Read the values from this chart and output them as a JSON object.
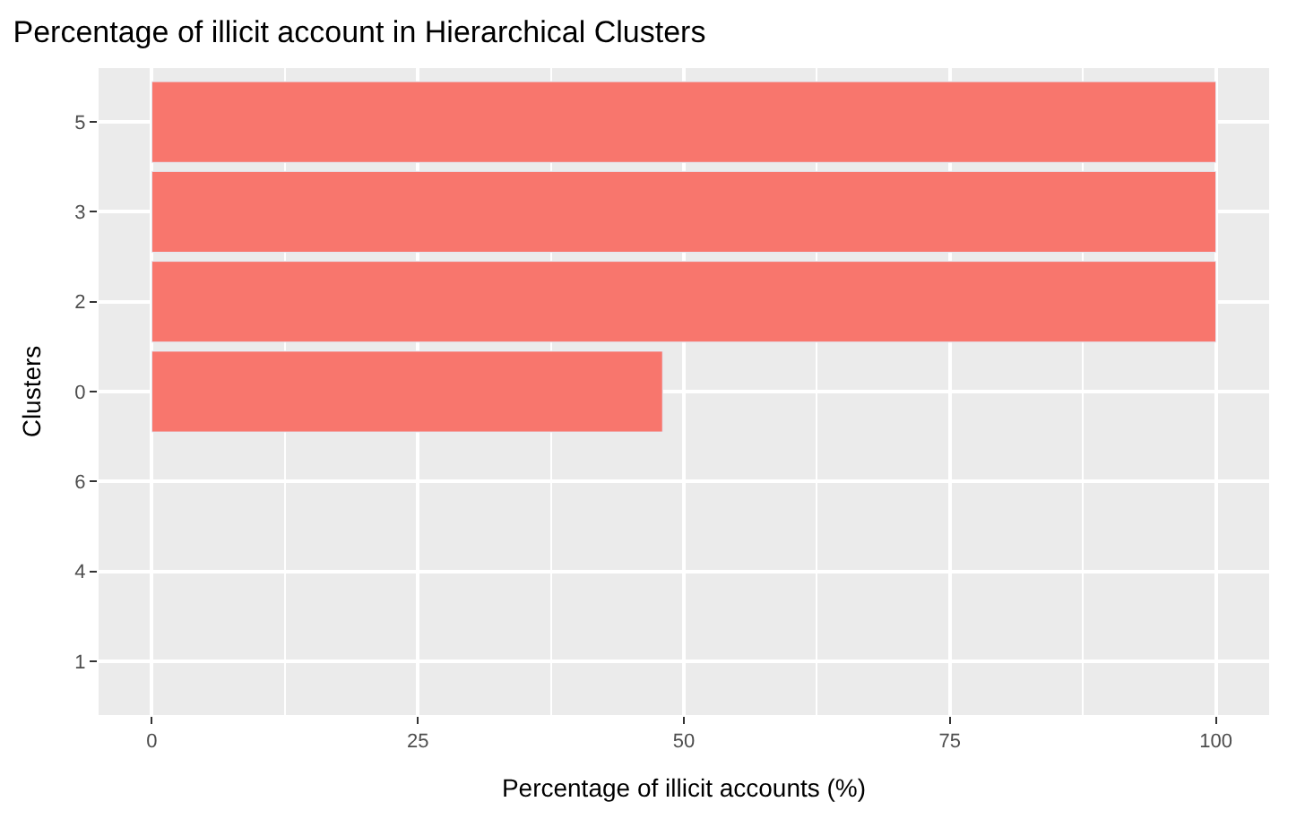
{
  "chart_data": {
    "type": "bar",
    "orientation": "horizontal",
    "title": "Percentage of illicit account in Hierarchical Clusters",
    "xlabel": "Percentage of illicit accounts (%)",
    "ylabel": "Clusters",
    "categories": [
      "5",
      "3",
      "2",
      "0",
      "6",
      "4",
      "1"
    ],
    "values": [
      100,
      100,
      100,
      48,
      null,
      null,
      null
    ],
    "color": "#f8766d",
    "xlim": [
      -5,
      105
    ],
    "xticks": [
      0,
      25,
      50,
      75,
      100
    ],
    "grid": true,
    "legend": false
  }
}
